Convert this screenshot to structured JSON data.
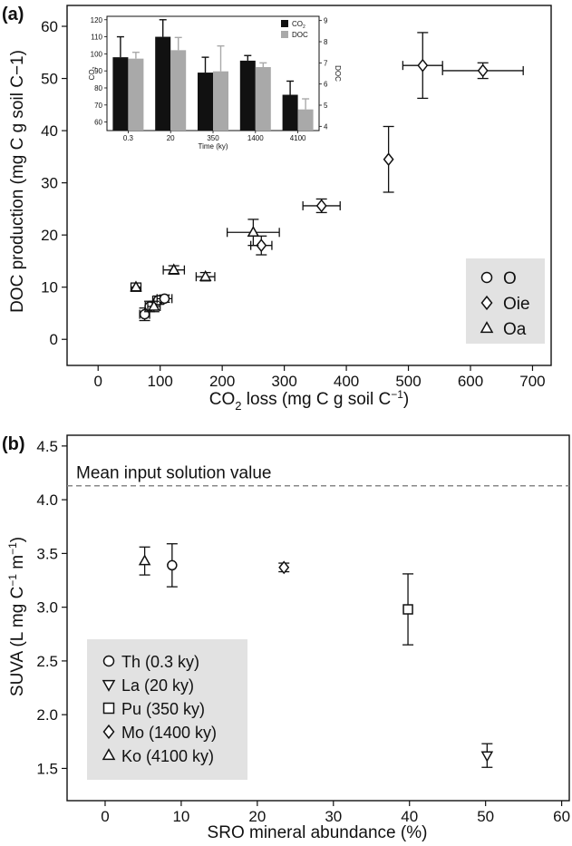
{
  "colors": {
    "axis": "#111111",
    "legend_bg": "#e2e2e2",
    "co2_bar": "#111111",
    "doc_bar": "#a9a9a9",
    "ref_line": "#888888",
    "marker_fill": "#ffffff"
  },
  "chart_data": [
    {
      "panel_label": "(a)",
      "type": "scatter",
      "xlabel_html": "CO<tspan font-size='13' dy='6'>2</tspan><tspan dy='-6'> loss (mg C g soil C</tspan><tspan font-size='12' dy='-7'>−1</tspan><tspan dy='7'>)</tspan>",
      "xlabel": "CO2 loss (mg C g soil C−1)",
      "ylabel": "DOC production (mg C g soil C−1)",
      "xlim": [
        -50,
        730
      ],
      "ylim": [
        -5,
        64
      ],
      "xticks": [
        0,
        100,
        200,
        300,
        400,
        500,
        600,
        700
      ],
      "yticks": [
        0,
        10,
        20,
        30,
        40,
        50,
        60
      ],
      "legend": {
        "position": "bottom-right",
        "items": [
          "O",
          "Oie",
          "Oa"
        ]
      },
      "series": [
        {
          "name": "O",
          "marker": "circle",
          "points": [
            {
              "x": 75,
              "y": 4.8,
              "xerr": 8,
              "yerr": 1.2
            },
            {
              "x": 83,
              "y": 6.3,
              "xerr": 7,
              "yerr": 1.0
            },
            {
              "x": 97,
              "y": 7.5,
              "xerr": 9,
              "yerr": 0.8
            },
            {
              "x": 107,
              "y": 7.8,
              "xerr": 12,
              "yerr": 0.7
            }
          ]
        },
        {
          "name": "Oie",
          "marker": "diamond",
          "points": [
            {
              "x": 263,
              "y": 18.0,
              "xerr": 17,
              "yerr": 1.8
            },
            {
              "x": 360,
              "y": 25.6,
              "xerr": 30,
              "yerr": 1.3
            },
            {
              "x": 468,
              "y": 34.5,
              "xerr": 0,
              "yerr": 6.3
            },
            {
              "x": 523,
              "y": 52.5,
              "xerr": 32,
              "yerr": 6.3
            },
            {
              "x": 620,
              "y": 51.5,
              "xerr": 65,
              "yerr": 1.5
            }
          ]
        },
        {
          "name": "Oa",
          "marker": "triangle",
          "points": [
            {
              "x": 61,
              "y": 10.0,
              "xerr": 8,
              "yerr": 0.8
            },
            {
              "x": 90,
              "y": 6.3,
              "xerr": 10,
              "yerr": 1.0
            },
            {
              "x": 122,
              "y": 13.3,
              "xerr": 17,
              "yerr": 0.8
            },
            {
              "x": 173,
              "y": 12.0,
              "xerr": 15,
              "yerr": 0.8
            },
            {
              "x": 250,
              "y": 20.5,
              "xerr": 42,
              "yerr": 2.5
            }
          ]
        }
      ]
    },
    {
      "type": "bar",
      "role": "inset",
      "categories": [
        "0.3",
        "20",
        "350",
        "1400",
        "4100"
      ],
      "xlabel": "Time (ky)",
      "ylabel": "CO2",
      "ylabel_html": "CO<tspan font-size='5' dy='2'>2</tspan>",
      "y2label": "DOC",
      "ylim": [
        55,
        122
      ],
      "yticks": [
        60,
        70,
        80,
        90,
        100,
        110,
        120
      ],
      "y2lim": [
        3.8,
        9.2
      ],
      "y2ticks": [
        4,
        5,
        6,
        7,
        8,
        9
      ],
      "legend": {
        "position": "top-right",
        "items": [
          "CO2",
          "DOC"
        ]
      },
      "legend_html": [
        "CO<tspan font-size='5' dy='2'>2</tspan>",
        "DOC"
      ],
      "series": [
        {
          "name": "CO2",
          "axis": "left",
          "values": [
            98,
            110,
            89,
            96,
            76
          ],
          "err": [
            12,
            10,
            9,
            3,
            8
          ]
        },
        {
          "name": "DOC",
          "axis": "right",
          "values": [
            7.2,
            7.6,
            6.6,
            6.8,
            4.8
          ],
          "err": [
            0.3,
            0.6,
            1.2,
            0.2,
            0.5
          ]
        }
      ]
    },
    {
      "panel_label": "(b)",
      "type": "scatter",
      "xlabel": "SRO mineral abundance (%)",
      "ylabel": "SUVA (L mg C−1 m−1)",
      "ylabel_html": "SUVA (L mg C<tspan font-size='12' dy='-7'>−1</tspan><tspan dy='7'> m</tspan><tspan font-size='12' dy='-7'>−1</tspan><tspan dy='7'>)</tspan>",
      "xlim": [
        -5,
        61
      ],
      "ylim": [
        1.2,
        4.6
      ],
      "xticks": [
        0,
        10,
        20,
        30,
        40,
        50,
        60
      ],
      "yticks": [
        1.5,
        2.0,
        2.5,
        3.0,
        3.5,
        4.0,
        4.5
      ],
      "ytick_labels": [
        "1.5",
        "2.0",
        "2.5",
        "3.0",
        "3.5",
        "4.0",
        "4.5"
      ],
      "reference_line": {
        "y": 4.13,
        "label": "Mean input solution value"
      },
      "legend": {
        "position": "bottom-left",
        "items": [
          "Th (0.3 ky)",
          "La (20 ky)",
          "Pu (350 ky)",
          "Mo (1400 ky)",
          "Ko (4100 ky)"
        ]
      },
      "series": [
        {
          "name": "Th (0.3 ky)",
          "marker": "circle",
          "points": [
            {
              "x": 8.8,
              "y": 3.39,
              "yerr": 0.2
            }
          ]
        },
        {
          "name": "La (20 ky)",
          "marker": "triangle-down",
          "points": [
            {
              "x": 50.2,
              "y": 1.62,
              "yerr": 0.11
            }
          ]
        },
        {
          "name": "Pu (350 ky)",
          "marker": "square",
          "points": [
            {
              "x": 39.8,
              "y": 2.98,
              "yerr": 0.33
            }
          ]
        },
        {
          "name": "Mo (1400 ky)",
          "marker": "diamond",
          "points": [
            {
              "x": 23.5,
              "y": 3.37,
              "yerr": 0.04
            }
          ]
        },
        {
          "name": "Ko (4100 ky)",
          "marker": "triangle",
          "points": [
            {
              "x": 5.2,
              "y": 3.43,
              "yerr": 0.13
            }
          ]
        }
      ]
    }
  ]
}
